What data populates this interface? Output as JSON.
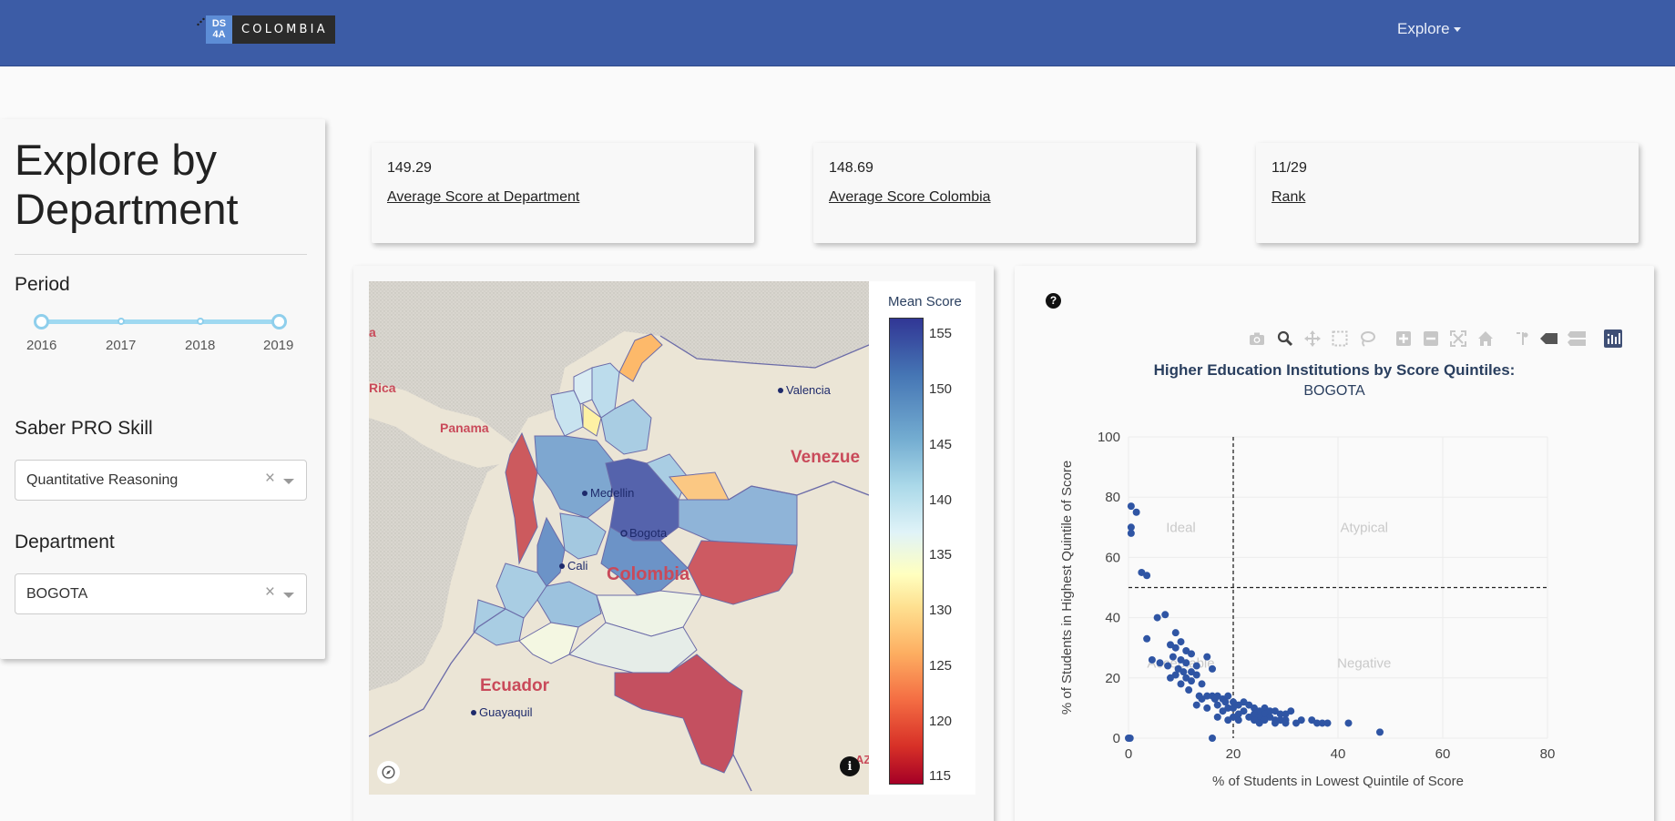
{
  "navbar": {
    "logo_mark": "DS 4A",
    "logo_text": "COLOMBIA",
    "explore_label": "Explore"
  },
  "sidebar": {
    "title": "Explore by Department",
    "period_label": "Period",
    "period_marks": [
      "2016",
      "2017",
      "2018",
      "2019"
    ],
    "period_selected": [
      "2016",
      "2019"
    ],
    "skill_label": "Saber PRO Skill",
    "skill_value": "Quantitative Reasoning",
    "department_label": "Department",
    "department_value": "BOGOTA"
  },
  "stats": [
    {
      "value": "149.29",
      "label": "Average Score at Department"
    },
    {
      "value": "148.69",
      "label": "Average Score Colombia"
    },
    {
      "value": "11/29",
      "label": "Rank"
    }
  ],
  "map": {
    "legend_title": "Mean Score",
    "legend_ticks": [
      "155",
      "150",
      "145",
      "140",
      "135",
      "130",
      "125",
      "120",
      "115"
    ],
    "colorscale": [
      "#313695",
      "#4575b4",
      "#74add1",
      "#abd9e9",
      "#e0f3f8",
      "#ffffbf",
      "#fee090",
      "#fdae61",
      "#f46d43",
      "#d73027",
      "#a50026"
    ],
    "place_labels": {
      "rica": "Rica",
      "panama": "Panama",
      "venezuela": "Venezue",
      "valencia": "Valencia",
      "medellin": "Medellin",
      "bogota": "Bogota",
      "cali": "Cali",
      "colombia": "Colombia",
      "ecuador": "Ecuador",
      "guayaquil": "Guayaquil",
      "edge_a": "a",
      "edge_az": "AZ"
    },
    "icons": [
      "compass-icon",
      "info-icon"
    ]
  },
  "chart_data": {
    "type": "scatter",
    "title": "Higher Education Institutions by Score Quintiles:",
    "subtitle": "BOGOTA",
    "xlabel": "% of Students in Lowest Quintile of Score",
    "ylabel": "% of Students in Highest Quintile of Score",
    "xlim": [
      0,
      80
    ],
    "ylim": [
      0,
      100
    ],
    "xticks": [
      0,
      20,
      40,
      60,
      80
    ],
    "yticks": [
      0,
      20,
      40,
      60,
      80,
      100
    ],
    "vline_x": 20,
    "hline_y": 50,
    "quadrant_labels": [
      "Ideal",
      "Atypical",
      "Acceptable",
      "Negative"
    ],
    "marker_color": "#2f55a4",
    "points": [
      [
        0.5,
        77
      ],
      [
        1.5,
        75
      ],
      [
        0.5,
        70
      ],
      [
        0.5,
        68
      ],
      [
        2.5,
        55
      ],
      [
        3.5,
        54
      ],
      [
        0,
        0
      ],
      [
        0.3,
        0
      ],
      [
        5.5,
        40
      ],
      [
        7,
        41
      ],
      [
        3.5,
        33
      ],
      [
        4.5,
        26
      ],
      [
        6,
        25
      ],
      [
        9,
        35
      ],
      [
        10,
        32
      ],
      [
        8,
        31
      ],
      [
        9,
        30
      ],
      [
        11,
        29
      ],
      [
        12,
        28
      ],
      [
        8.5,
        27
      ],
      [
        10,
        26
      ],
      [
        11,
        25
      ],
      [
        13,
        24
      ],
      [
        7.5,
        24
      ],
      [
        9.5,
        23
      ],
      [
        10.5,
        22
      ],
      [
        12,
        22
      ],
      [
        13,
        21
      ],
      [
        9,
        21
      ],
      [
        11,
        20
      ],
      [
        8,
        20
      ],
      [
        12,
        19
      ],
      [
        14,
        18
      ],
      [
        10,
        18
      ],
      [
        15,
        27
      ],
      [
        16,
        23
      ],
      [
        11.5,
        16
      ],
      [
        13.5,
        14
      ],
      [
        15,
        14
      ],
      [
        16,
        14
      ],
      [
        17,
        14
      ],
      [
        18,
        13
      ],
      [
        19,
        14
      ],
      [
        14,
        13
      ],
      [
        16.5,
        13
      ],
      [
        18.5,
        12
      ],
      [
        20,
        12
      ],
      [
        21,
        11
      ],
      [
        22,
        12
      ],
      [
        23,
        11
      ],
      [
        17,
        11
      ],
      [
        19,
        10
      ],
      [
        20,
        10
      ],
      [
        24,
        10
      ],
      [
        25,
        9
      ],
      [
        26,
        10
      ],
      [
        27,
        9
      ],
      [
        28,
        9
      ],
      [
        29,
        8
      ],
      [
        30,
        8
      ],
      [
        31,
        9
      ],
      [
        22,
        9
      ],
      [
        24,
        8
      ],
      [
        26,
        8
      ],
      [
        18,
        9
      ],
      [
        15,
        10
      ],
      [
        13,
        11
      ],
      [
        21,
        8
      ],
      [
        23,
        7
      ],
      [
        25,
        7
      ],
      [
        27,
        7
      ],
      [
        28,
        6
      ],
      [
        30,
        6
      ],
      [
        26,
        6
      ],
      [
        29,
        6
      ],
      [
        33,
        6
      ],
      [
        35,
        6
      ],
      [
        37,
        5
      ],
      [
        38,
        5
      ],
      [
        32,
        5
      ],
      [
        28,
        5
      ],
      [
        25,
        5
      ],
      [
        20,
        7
      ],
      [
        17,
        7
      ],
      [
        19,
        6
      ],
      [
        42,
        5
      ],
      [
        48,
        2
      ],
      [
        16,
        0
      ],
      [
        21,
        6
      ],
      [
        24,
        6
      ],
      [
        30,
        5
      ],
      [
        36,
        5
      ]
    ]
  }
}
